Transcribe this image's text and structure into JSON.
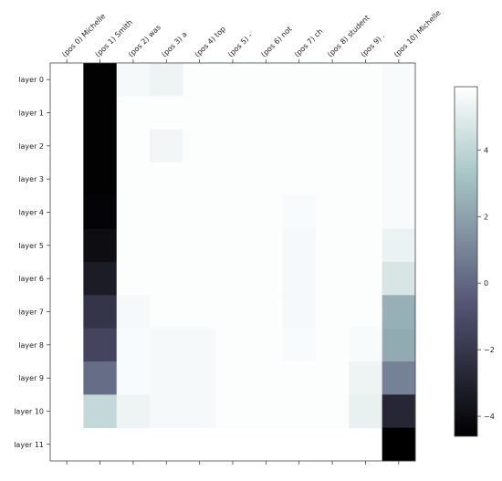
{
  "chart_data": {
    "type": "heatmap",
    "x_labels": [
      "(pos  0) Michelle",
      "(pos  1)  Smith",
      "(pos  2)  was",
      "(pos  3)  a",
      "(pos  4)  top",
      "(pos  5)  -",
      "(pos  6) not",
      "(pos  7) ch",
      "(pos  8)  student",
      "(pos  9)  .",
      "(pos 10)  Michelle"
    ],
    "y_labels": [
      "layer  0",
      "layer  1",
      "layer  2",
      "layer  3",
      "layer  4",
      "layer  5",
      "layer  6",
      "layer  7",
      "layer  8",
      "layer  9",
      "layer 10",
      "layer 11"
    ],
    "values": [
      [
        null,
        -4.5,
        5.6,
        5.4,
        5.8,
        5.8,
        5.8,
        5.8,
        5.8,
        5.8,
        5.7
      ],
      [
        null,
        -4.5,
        5.8,
        5.8,
        5.8,
        5.8,
        5.8,
        5.8,
        5.8,
        5.8,
        5.7
      ],
      [
        null,
        -4.5,
        5.8,
        5.5,
        5.8,
        5.8,
        5.8,
        5.8,
        5.8,
        5.8,
        5.7
      ],
      [
        null,
        -4.5,
        5.8,
        5.8,
        5.8,
        5.8,
        5.8,
        5.8,
        5.8,
        5.8,
        5.7
      ],
      [
        null,
        -4.4,
        5.8,
        5.8,
        5.8,
        5.8,
        5.8,
        5.7,
        5.8,
        5.8,
        5.7
      ],
      [
        null,
        -4.0,
        5.8,
        5.8,
        5.8,
        5.8,
        5.8,
        5.6,
        5.8,
        5.8,
        5.3
      ],
      [
        null,
        -3.3,
        5.8,
        5.8,
        5.8,
        5.8,
        5.8,
        5.6,
        5.8,
        5.8,
        4.7
      ],
      [
        null,
        -2.1,
        5.6,
        5.8,
        5.8,
        5.8,
        5.8,
        5.6,
        5.8,
        5.8,
        2.5
      ],
      [
        null,
        -1.4,
        5.7,
        5.6,
        5.6,
        5.8,
        5.8,
        5.7,
        5.8,
        5.7,
        2.3
      ],
      [
        null,
        0.2,
        5.7,
        5.6,
        5.6,
        5.8,
        5.8,
        5.8,
        5.8,
        5.4,
        0.9
      ],
      [
        null,
        4.1,
        5.4,
        5.6,
        5.6,
        5.8,
        5.8,
        5.8,
        5.8,
        5.2,
        -2.8
      ],
      [
        null,
        null,
        null,
        null,
        null,
        null,
        null,
        null,
        null,
        null,
        -4.6
      ]
    ],
    "colorbar": {
      "min": -4.6,
      "max": 5.9,
      "ticks": [
        -4,
        -2,
        0,
        2,
        4
      ],
      "tick_labels": [
        "−4",
        "−2",
        "0",
        "2",
        "4"
      ]
    },
    "colormap": "bone",
    "xlabel": "",
    "ylabel": "",
    "title": ""
  }
}
